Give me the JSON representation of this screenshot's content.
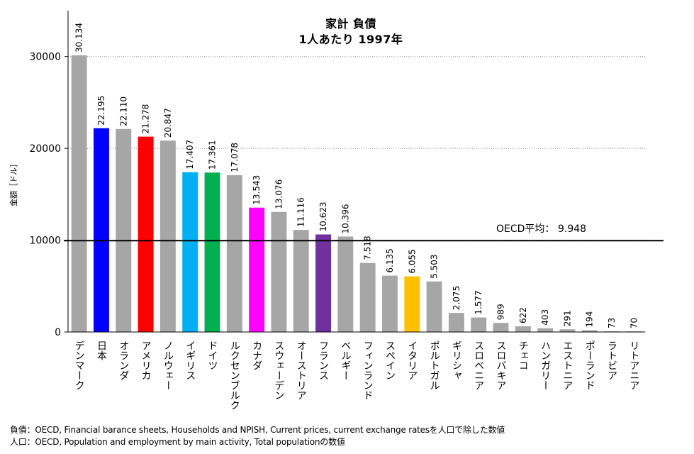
{
  "chart_data": {
    "type": "bar",
    "title_line1": "家計 負債",
    "title_line2": "1人あたり 1997年",
    "xlabel": "",
    "ylabel": "金額［ドル］",
    "ylim": [
      0,
      35000
    ],
    "yticks": [
      0,
      10000,
      20000,
      30000
    ],
    "grid": true,
    "categories": [
      "デンマーク",
      "日本",
      "オランダ",
      "アメリカ",
      "ノルウェー",
      "イギリス",
      "ドイツ",
      "ルクセンブルク",
      "カナダ",
      "スウェーデン",
      "オーストリア",
      "フランス",
      "ベルギー",
      "フィンランド",
      "スペイン",
      "イタリア",
      "ポルトガル",
      "ギリシャ",
      "スロベニア",
      "スロバキア",
      "チェコ",
      "ハンガリー",
      "エストニア",
      "ポーランド",
      "ラトビア",
      "リトアニア"
    ],
    "values": [
      30134,
      22195,
      22110,
      21278,
      20847,
      17407,
      17361,
      17078,
      13543,
      13076,
      11116,
      10623,
      10396,
      7518,
      6135,
      6055,
      5503,
      2075,
      1577,
      989,
      622,
      403,
      291,
      194,
      73,
      70
    ],
    "value_labels": [
      "30.134",
      "22.195",
      "22.110",
      "21.278",
      "20.847",
      "17.407",
      "17.361",
      "17.078",
      "13.543",
      "13.076",
      "11.116",
      "10.623",
      "10.396",
      "7.518",
      "6.135",
      "6.055",
      "5.503",
      "2.075",
      "1.577",
      "989",
      "622",
      "403",
      "291",
      "194",
      "73",
      "70"
    ],
    "colors": [
      "#a6a6a6",
      "#0000ff",
      "#a6a6a6",
      "#ff0000",
      "#a6a6a6",
      "#00b0f0",
      "#00b050",
      "#a6a6a6",
      "#ff00ff",
      "#a6a6a6",
      "#a6a6a6",
      "#7030a0",
      "#a6a6a6",
      "#a6a6a6",
      "#a6a6a6",
      "#ffc000",
      "#a6a6a6",
      "#a6a6a6",
      "#a6a6a6",
      "#a6a6a6",
      "#a6a6a6",
      "#a6a6a6",
      "#a6a6a6",
      "#a6a6a6",
      "#a6a6a6",
      "#a6a6a6"
    ],
    "reference_line": {
      "label": "OECD平均：",
      "value": 9948,
      "value_label": "9.948",
      "color": "#000000"
    }
  },
  "notes": {
    "line1": "負債：OECD, Financial barance sheets, Households and NPISH, Current prices, current exchange ratesを人口で除した数値",
    "line2": "人口：OECD, Population and employment by main activity, Total populationの数値"
  }
}
